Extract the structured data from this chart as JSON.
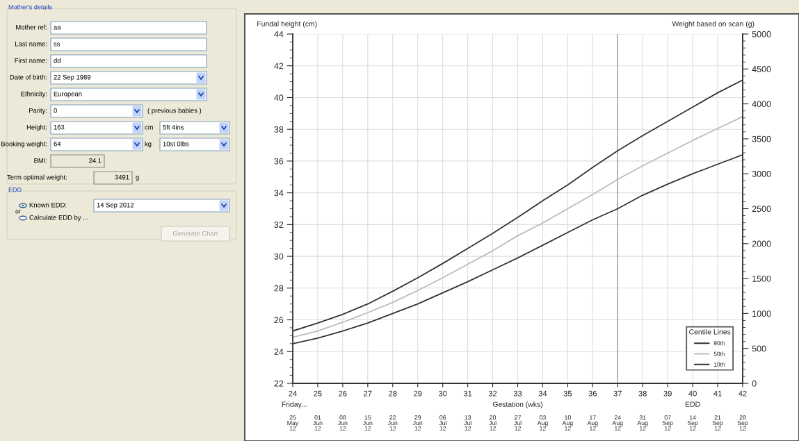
{
  "chart_data": {
    "type": "line",
    "ylabel": "Fundal height (cm)",
    "y2label": "Weight based on scan (g)",
    "xlabel": "Gestation (wks)",
    "legend_title": "Centile Lines",
    "x": [
      24,
      25,
      26,
      27,
      28,
      29,
      30,
      31,
      32,
      33,
      34,
      35,
      36,
      37,
      38,
      39,
      40,
      41,
      42
    ],
    "series": [
      {
        "name": "90th",
        "color": "#333333",
        "values": [
          25.3,
          25.8,
          26.35,
          27.0,
          27.8,
          28.65,
          29.55,
          30.5,
          31.45,
          32.45,
          33.5,
          34.5,
          35.6,
          36.65,
          37.6,
          38.5,
          39.4,
          40.3,
          41.1
        ]
      },
      {
        "name": "50th",
        "color": "#bbbbbb",
        "values": [
          24.9,
          25.3,
          25.85,
          26.45,
          27.1,
          27.85,
          28.65,
          29.5,
          30.35,
          31.3,
          32.1,
          33.0,
          33.9,
          34.85,
          35.7,
          36.5,
          37.3,
          38.05,
          38.8
        ]
      },
      {
        "name": "10th",
        "color": "#333333",
        "values": [
          24.5,
          24.85,
          25.3,
          25.8,
          26.4,
          27.0,
          27.7,
          28.4,
          29.15,
          29.9,
          30.7,
          31.5,
          32.3,
          33.0,
          33.85,
          34.55,
          35.2,
          35.8,
          36.4
        ]
      }
    ],
    "xlim": [
      24,
      42
    ],
    "xticks": [
      24,
      25,
      26,
      27,
      28,
      29,
      30,
      31,
      32,
      33,
      34,
      35,
      36,
      37,
      38,
      39,
      40,
      41,
      42
    ],
    "ylim": [
      22,
      44
    ],
    "yticks": [
      22,
      24,
      26,
      28,
      30,
      32,
      34,
      36,
      38,
      40,
      42,
      44
    ],
    "y2lim": [
      0,
      5000
    ],
    "y2ticks": [
      0,
      500,
      1000,
      1500,
      2000,
      2500,
      3000,
      3500,
      4000,
      4500,
      5000
    ],
    "ref_lines": [
      {
        "axis": "x",
        "value": 37,
        "color": "#999999"
      }
    ],
    "grid": true,
    "legend": "bottom right",
    "marker": "none",
    "line_style": "solid",
    "annotations": [
      "Friday...",
      "EDD",
      "25\nMay\n12",
      "01\nJun\n12",
      "08\nJun\n12",
      "15\nJun\n12",
      "22\nJun\n12",
      "29\nJun\n12",
      "06\nJul\n12",
      "13\nJul\n12",
      "20\nJul\n12",
      "27\nJul\n12",
      "03\nAug\n12",
      "10\nAug\n12",
      "17\nAug\n12",
      "24\nAug\n12",
      "31\nAug\n12",
      "07\nSep\n12",
      "14\nSep\n12",
      "21\nSep\n12",
      "28\nSep\n12",
      "Mother's details",
      "Mother ref:",
      "aa",
      "Last name:",
      "ss",
      "First name:",
      "dd",
      "Date of birth:",
      "22 Sep 1989",
      "Ethnicity:",
      "European",
      "Parity:",
      "0",
      "( previous babies )",
      "Height:",
      "163",
      "cm",
      "5ft 4ins",
      "Booking weight:",
      "64",
      "kg",
      "10st 0lbs",
      "BMI:",
      "24.1",
      "Term optimal weight:",
      "3491",
      "g",
      "EDD",
      "Known EDD:",
      "14 Sep 2012",
      "or",
      "Calculate EDD by ...",
      "Generate Chart"
    ]
  }
}
